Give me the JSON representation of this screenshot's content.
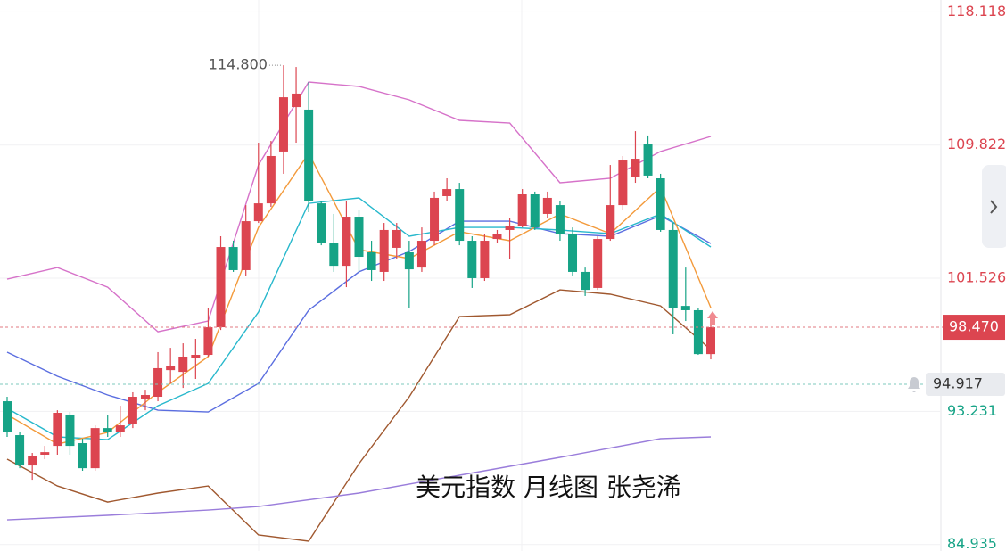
{
  "chart_data": {
    "type": "candlestick",
    "title": "美元指数 月线图 张尧浠",
    "ylim": [
      84.53,
      118.86
    ],
    "yticks": [
      118.118,
      109.822,
      101.526,
      93.231,
      84.935
    ],
    "grid": true,
    "up_color": "#dc4550",
    "down_color": "#16a386",
    "open": [
      93.86,
      91.75,
      89.86,
      90.53,
      91.08,
      93.03,
      91.25,
      89.69,
      92.19,
      91.92,
      92.47,
      94.03,
      94.14,
      95.8,
      95.69,
      96.53,
      96.75,
      98.47,
      103.47,
      102.03,
      105.08,
      106.19,
      109.42,
      112.19,
      112.03,
      106.19,
      103.75,
      102.3,
      105.36,
      103.14,
      101.92,
      103.42,
      103.14,
      102.19,
      103.86,
      106.64,
      107.08,
      103.86,
      101.53,
      103.97,
      104.53,
      104.8,
      106.75,
      105.53,
      106.08,
      104.25,
      101.92,
      100.92,
      103.97,
      106.08,
      107.86,
      109.86,
      107.75,
      104.53,
      99.8,
      99.53,
      96.8
    ],
    "high": [
      94.14,
      91.92,
      90.64,
      91.08,
      93.3,
      93.19,
      91.53,
      92.36,
      93.03,
      93.58,
      94.42,
      94.58,
      96.92,
      97.19,
      97.47,
      97.75,
      99.69,
      104.14,
      103.86,
      106.08,
      109.97,
      110.08,
      114.8,
      114.69,
      113.75,
      106.36,
      105.53,
      106.36,
      105.8,
      103.86,
      104.97,
      104.97,
      103.86,
      104.69,
      106.92,
      107.75,
      107.47,
      104.14,
      104.3,
      104.53,
      105.25,
      107.08,
      106.92,
      106.92,
      106.36,
      104.69,
      102.19,
      104.14,
      108.58,
      109.14,
      110.69,
      110.42,
      108.03,
      104.97,
      102.19,
      99.69,
      98.97
    ],
    "low": [
      91.64,
      89.69,
      88.97,
      90.25,
      90.53,
      90.53,
      89.53,
      89.53,
      91.64,
      91.64,
      92.19,
      93.3,
      93.86,
      94.97,
      94.69,
      95.25,
      96.64,
      98.3,
      101.92,
      101.64,
      104.97,
      105.97,
      108.03,
      109.97,
      105.64,
      103.58,
      101.92,
      100.97,
      101.92,
      101.36,
      101.36,
      102.75,
      99.69,
      101.92,
      103.58,
      106.36,
      103.58,
      100.92,
      101.36,
      103.75,
      102.75,
      104.69,
      104.53,
      105.25,
      103.86,
      101.64,
      100.42,
      100.8,
      103.86,
      105.8,
      107.47,
      107.75,
      104.42,
      98.03,
      98.86,
      96.75,
      96.47
    ],
    "close": [
      91.92,
      89.86,
      90.42,
      90.69,
      93.14,
      91.08,
      89.69,
      92.19,
      91.97,
      92.36,
      94.14,
      94.25,
      95.92,
      96.03,
      96.64,
      96.75,
      98.47,
      103.47,
      102.03,
      105.08,
      106.19,
      109.14,
      112.8,
      113.03,
      106.36,
      103.75,
      102.3,
      105.36,
      102.86,
      102.03,
      104.53,
      104.53,
      102.08,
      103.86,
      106.53,
      107.08,
      103.86,
      101.53,
      103.86,
      104.3,
      104.8,
      106.75,
      104.69,
      106.53,
      104.25,
      101.92,
      100.8,
      103.97,
      106.08,
      108.86,
      108.97,
      107.92,
      104.53,
      99.69,
      99.53,
      96.8,
      98.47
    ],
    "lines": [
      {
        "color": "#d672c9",
        "x": [
          0,
          4,
          8,
          12,
          16,
          20,
          24,
          28,
          32,
          36,
          40,
          44,
          48,
          52,
          56
        ],
        "values": [
          101.47,
          102.19,
          100.97,
          98.19,
          98.86,
          108.58,
          113.75,
          113.47,
          112.64,
          111.36,
          111.19,
          107.47,
          107.75,
          109.42,
          110.36
        ]
      },
      {
        "color": "#a0582f",
        "x": [
          0,
          4,
          8,
          12,
          16,
          20,
          24,
          28,
          32,
          36,
          40,
          44,
          48,
          52,
          56
        ],
        "values": [
          90.25,
          88.58,
          87.58,
          88.14,
          88.58,
          85.53,
          85.14,
          89.97,
          94.14,
          99.14,
          99.25,
          100.8,
          100.53,
          99.8,
          97.08
        ]
      },
      {
        "color": "#5b6ee0",
        "x": [
          0,
          4,
          8,
          12,
          16,
          20,
          24,
          28,
          32,
          36,
          40,
          44,
          48,
          52,
          56
        ],
        "values": [
          96.92,
          95.42,
          94.25,
          93.3,
          93.19,
          94.97,
          99.53,
          101.92,
          103.19,
          105.08,
          105.08,
          104.3,
          104.14,
          105.42,
          103.69
        ]
      },
      {
        "color": "#27b8cc",
        "x": [
          0,
          4,
          8,
          12,
          16,
          20,
          24,
          28,
          32,
          36,
          40,
          44,
          48,
          52,
          56
        ],
        "values": [
          93.42,
          91.64,
          91.47,
          93.58,
          94.97,
          99.42,
          106.19,
          106.53,
          104.14,
          104.69,
          104.69,
          104.53,
          104.3,
          105.53,
          103.47
        ]
      },
      {
        "color": "#f39a3b",
        "x": [
          0,
          4,
          8,
          12,
          16,
          20,
          24,
          28,
          32,
          36,
          40,
          44,
          48,
          52,
          56
        ],
        "values": [
          93.03,
          91.19,
          91.92,
          94.42,
          96.64,
          104.69,
          109.3,
          103.3,
          102.75,
          104.42,
          103.86,
          105.53,
          104.3,
          107.19,
          99.69
        ]
      },
      {
        "color": "#9a7ddb",
        "x": [
          0,
          8,
          16,
          20,
          28,
          36,
          44,
          52,
          56
        ],
        "values": [
          86.47,
          86.75,
          87.08,
          87.3,
          88.14,
          89.25,
          90.36,
          91.53,
          91.64
        ]
      }
    ],
    "max_label": {
      "value": 114.8,
      "label": "114.800"
    },
    "max_index": 22,
    "current_price": {
      "value": 98.47,
      "label": "98.470"
    },
    "alert_price": 94.917
  }
}
